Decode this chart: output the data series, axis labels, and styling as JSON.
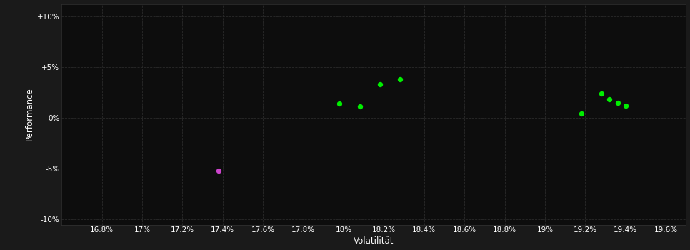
{
  "background_color": "#1a1a1a",
  "plot_bg_color": "#0d0d0d",
  "grid_color": "#2a2a2a",
  "text_color": "#ffffff",
  "xlabel": "Volatilität",
  "ylabel": "Performance",
  "xlim": [
    0.166,
    0.197
  ],
  "ylim": [
    -0.105,
    0.112
  ],
  "xticks": [
    0.168,
    0.17,
    0.172,
    0.174,
    0.176,
    0.178,
    0.18,
    0.182,
    0.184,
    0.186,
    0.188,
    0.19,
    0.192,
    0.194,
    0.196
  ],
  "xtick_labels": [
    "16.8%",
    "17%",
    "17.2%",
    "17.4%",
    "17.6%",
    "17.8%",
    "18%",
    "18.2%",
    "18.4%",
    "18.6%",
    "18.8%",
    "19%",
    "19.2%",
    "19.4%",
    "19.6%"
  ],
  "yticks": [
    -0.1,
    -0.05,
    0.0,
    0.05,
    0.1
  ],
  "ytick_labels": [
    "-10%",
    "-5%",
    "0%",
    "+5%",
    "+10%"
  ],
  "green_points": [
    [
      0.1798,
      0.014
    ],
    [
      0.1808,
      0.011
    ],
    [
      0.1818,
      0.033
    ],
    [
      0.1828,
      0.038
    ],
    [
      0.1918,
      0.004
    ],
    [
      0.1928,
      0.024
    ],
    [
      0.1932,
      0.018
    ],
    [
      0.1936,
      0.015
    ],
    [
      0.194,
      0.012
    ]
  ],
  "magenta_points": [
    [
      0.1738,
      -0.052
    ]
  ],
  "green_color": "#00ee00",
  "magenta_color": "#cc44cc",
  "marker_size": 28
}
